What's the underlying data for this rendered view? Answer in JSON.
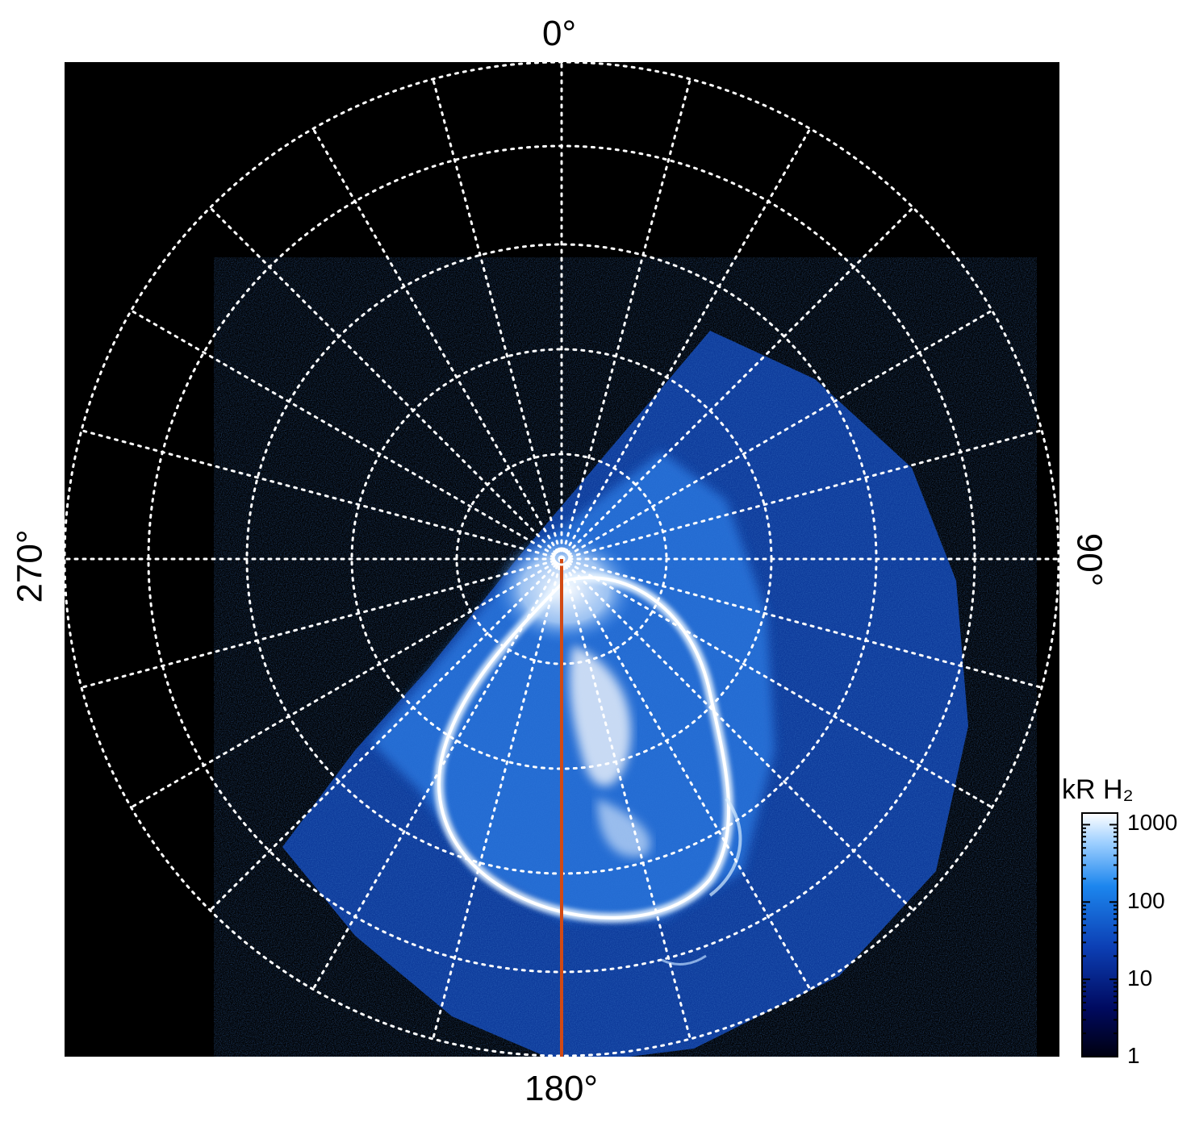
{
  "labels": {
    "top": "0°",
    "bottom": "180°",
    "left": "270°",
    "right": "90°"
  },
  "colorbar": {
    "title": "kR H₂",
    "ticks": [
      "1000",
      "100",
      "10",
      "1"
    ]
  },
  "colors": {
    "background": "#000000",
    "grid": "#ffffff",
    "meridian_line": "#d24a14",
    "cmap_low": "#00001a",
    "cmap_mid": "#1a6ee6",
    "cmap_high": "#ffffff"
  }
}
